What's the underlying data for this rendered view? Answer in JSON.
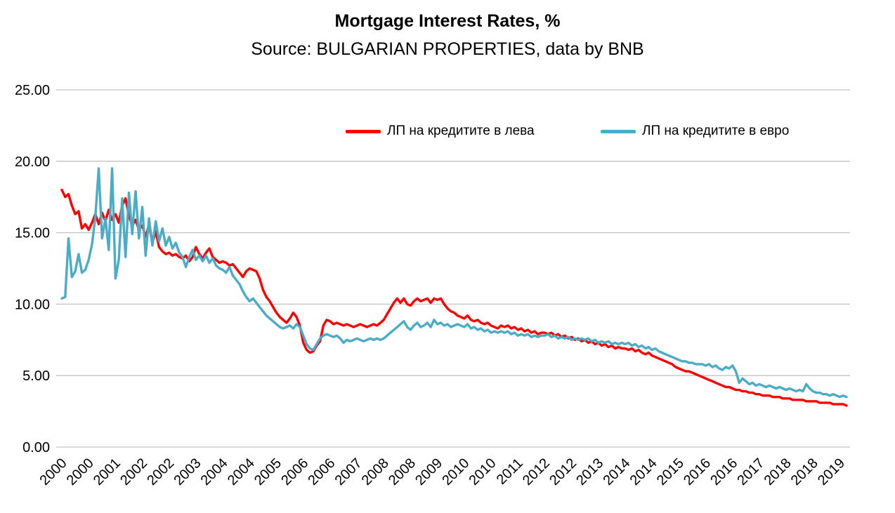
{
  "page": {
    "background": "#FFFFFF"
  },
  "header": {
    "title": "Mortgage Interest Rates, %",
    "subtitle": "Source: BULGARIAN PROPERTIES, data by BNB"
  },
  "chart_data": {
    "type": "line",
    "title": "Mortgage Interest Rates, %",
    "subtitle": "Source: BULGARIAN PROPERTIES, data by BNB",
    "x_unit": "monthly",
    "x_start": "2000-01",
    "x_end": "2019-07",
    "ylim": [
      0,
      25
    ],
    "y_ticks": [
      "25.00",
      "20.00",
      "15.00",
      "10.00",
      "5.00",
      "0.00"
    ],
    "grid": "horizontal",
    "gridline_color": "#C3C3C3",
    "legend_position": "top-inside",
    "tick_every": 8,
    "x_tick_labels": [
      "2000",
      "2000",
      "2001",
      "2002",
      "2002",
      "2003",
      "2004",
      "2004",
      "2005",
      "2006",
      "2006",
      "2007",
      "2008",
      "2008",
      "2009",
      "2010",
      "2010",
      "2011",
      "2012",
      "2012",
      "2013",
      "2014",
      "2014",
      "2015",
      "2016",
      "2016",
      "2017",
      "2018",
      "2018",
      "2019"
    ],
    "series": [
      {
        "name": "ЛП на кредитите в лева",
        "color": "#FF0000",
        "values": [
          18.0,
          17.5,
          17.7,
          16.9,
          16.3,
          16.5,
          15.3,
          15.6,
          15.2,
          15.7,
          16.3,
          15.6,
          16.4,
          15.8,
          16.6,
          15.9,
          16.3,
          15.7,
          16.9,
          17.4,
          16.2,
          15.5,
          15.9,
          15.2,
          15.5,
          14.7,
          15.6,
          14.3,
          15.1,
          14.0,
          13.7,
          13.5,
          13.6,
          13.4,
          13.5,
          13.3,
          13.2,
          13.4,
          13.0,
          13.3,
          14.0,
          13.5,
          13.2,
          13.6,
          13.9,
          13.3,
          13.1,
          12.9,
          13.0,
          12.9,
          12.7,
          12.8,
          12.5,
          12.2,
          11.9,
          12.3,
          12.5,
          12.4,
          12.3,
          11.8,
          11.0,
          10.5,
          10.2,
          9.8,
          9.4,
          9.1,
          8.9,
          8.7,
          9.0,
          9.4,
          9.1,
          8.5,
          7.3,
          6.8,
          6.6,
          6.7,
          7.1,
          7.4,
          8.5,
          8.9,
          8.8,
          8.6,
          8.7,
          8.6,
          8.5,
          8.6,
          8.5,
          8.4,
          8.5,
          8.6,
          8.5,
          8.4,
          8.5,
          8.6,
          8.5,
          8.7,
          8.9,
          9.3,
          9.7,
          10.1,
          10.4,
          10.1,
          10.4,
          10.0,
          9.9,
          10.2,
          10.4,
          10.2,
          10.3,
          10.4,
          10.1,
          10.4,
          10.3,
          10.4,
          10.0,
          9.7,
          9.5,
          9.4,
          9.2,
          9.1,
          9.0,
          9.2,
          8.9,
          8.8,
          8.9,
          8.7,
          8.6,
          8.7,
          8.5,
          8.4,
          8.3,
          8.5,
          8.4,
          8.5,
          8.3,
          8.4,
          8.2,
          8.3,
          8.1,
          8.2,
          8.0,
          8.1,
          7.9,
          8.0,
          8.0,
          7.9,
          8.0,
          7.8,
          7.9,
          7.7,
          7.8,
          7.6,
          7.7,
          7.5,
          7.6,
          7.4,
          7.5,
          7.3,
          7.4,
          7.2,
          7.3,
          7.1,
          7.2,
          7.0,
          7.1,
          6.9,
          7.0,
          6.9,
          6.9,
          6.8,
          6.9,
          6.7,
          6.8,
          6.6,
          6.5,
          6.6,
          6.4,
          6.3,
          6.2,
          6.1,
          6.0,
          5.9,
          5.8,
          5.6,
          5.5,
          5.4,
          5.3,
          5.3,
          5.2,
          5.1,
          5.0,
          4.9,
          4.8,
          4.7,
          4.6,
          4.5,
          4.4,
          4.3,
          4.2,
          4.2,
          4.1,
          4.0,
          4.0,
          3.9,
          3.9,
          3.8,
          3.8,
          3.7,
          3.7,
          3.6,
          3.6,
          3.6,
          3.5,
          3.5,
          3.5,
          3.4,
          3.4,
          3.4,
          3.3,
          3.3,
          3.3,
          3.3,
          3.2,
          3.2,
          3.2,
          3.2,
          3.1,
          3.1,
          3.1,
          3.1,
          3.0,
          3.0,
          3.0,
          3.0,
          2.9
        ]
      },
      {
        "name": "ЛП на кредитите в евро",
        "color": "#4BACC6",
        "values": [
          10.4,
          10.5,
          14.6,
          11.9,
          12.3,
          13.5,
          12.2,
          12.4,
          13.1,
          14.2,
          16.1,
          19.5,
          14.6,
          16.0,
          13.8,
          19.5,
          11.8,
          13.1,
          17.4,
          13.3,
          17.8,
          14.9,
          17.9,
          14.6,
          16.8,
          13.4,
          16.0,
          14.1,
          15.8,
          14.4,
          15.3,
          14.1,
          14.7,
          13.9,
          14.3,
          13.6,
          13.3,
          12.6,
          13.3,
          13.8,
          13.1,
          13.4,
          13.0,
          13.4,
          12.9,
          13.2,
          12.7,
          12.5,
          12.4,
          12.2,
          12.6,
          12.0,
          11.7,
          11.4,
          10.9,
          10.5,
          10.2,
          10.4,
          10.1,
          9.8,
          9.5,
          9.2,
          9.0,
          8.8,
          8.6,
          8.4,
          8.3,
          8.4,
          8.5,
          8.3,
          8.6,
          8.4,
          7.8,
          7.2,
          6.9,
          6.8,
          7.2,
          7.6,
          7.8,
          7.9,
          7.8,
          7.7,
          7.8,
          7.6,
          7.3,
          7.5,
          7.4,
          7.5,
          7.6,
          7.5,
          7.4,
          7.5,
          7.6,
          7.5,
          7.6,
          7.5,
          7.6,
          7.8,
          8.0,
          8.2,
          8.4,
          8.6,
          8.8,
          8.4,
          8.2,
          8.5,
          8.7,
          8.4,
          8.5,
          8.7,
          8.4,
          8.9,
          8.6,
          8.7,
          8.5,
          8.6,
          8.4,
          8.5,
          8.6,
          8.5,
          8.4,
          8.6,
          8.3,
          8.4,
          8.2,
          8.3,
          8.1,
          8.2,
          8.0,
          8.1,
          8.0,
          8.1,
          8.0,
          8.1,
          7.9,
          8.0,
          7.8,
          7.9,
          7.8,
          7.9,
          7.7,
          7.8,
          7.7,
          7.8,
          7.8,
          7.9,
          7.7,
          7.8,
          7.6,
          7.7,
          7.6,
          7.7,
          7.5,
          7.6,
          7.5,
          7.6,
          7.5,
          7.6,
          7.4,
          7.5,
          7.3,
          7.4,
          7.3,
          7.4,
          7.2,
          7.3,
          7.2,
          7.3,
          7.2,
          7.3,
          7.1,
          7.2,
          7.0,
          7.1,
          6.9,
          7.0,
          6.8,
          6.9,
          6.7,
          6.6,
          6.5,
          6.4,
          6.3,
          6.2,
          6.1,
          6.0,
          6.0,
          5.9,
          5.9,
          5.8,
          5.8,
          5.8,
          5.7,
          5.8,
          5.6,
          5.7,
          5.5,
          5.4,
          5.6,
          5.5,
          5.7,
          5.3,
          4.5,
          4.8,
          4.6,
          4.4,
          4.5,
          4.3,
          4.4,
          4.3,
          4.2,
          4.3,
          4.2,
          4.1,
          4.2,
          4.1,
          4.0,
          4.1,
          4.0,
          3.9,
          4.0,
          3.9,
          4.4,
          4.1,
          3.9,
          3.8,
          3.8,
          3.7,
          3.7,
          3.6,
          3.7,
          3.6,
          3.5,
          3.6,
          3.5
        ]
      }
    ]
  }
}
